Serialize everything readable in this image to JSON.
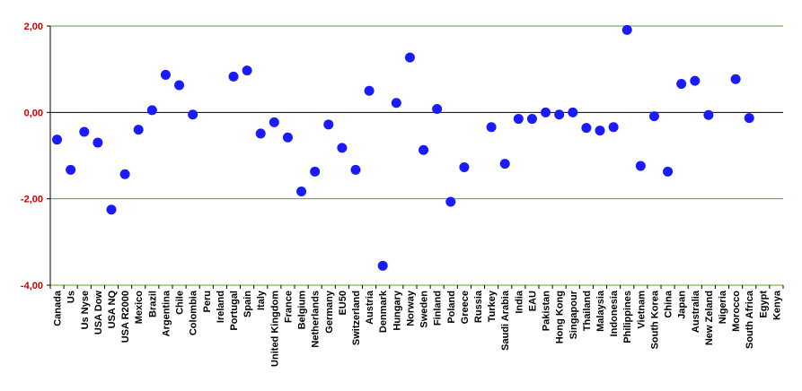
{
  "chart_data": {
    "type": "scatter",
    "title": "",
    "xlabel": "",
    "ylabel": "",
    "ylim": [
      -4,
      2
    ],
    "yticks": [
      2,
      0,
      -2,
      -4
    ],
    "ytick_labels": [
      "2,00",
      "0,00",
      "-2,00",
      "-4,00"
    ],
    "grid": true,
    "legend": "none",
    "colors": {
      "marker": "#1a1aff",
      "gridline": "#5aa02c",
      "zero_line": "#000000",
      "ytick_text": "#cc0000",
      "axis": "#000000"
    },
    "categories": [
      "Canada",
      "Us",
      "Us Nyse",
      "USA Dow",
      "USA NQ",
      "USA R2000",
      "Mexico",
      "Brazil",
      "Argentina",
      "Chile",
      "Colombia",
      "Peru",
      "Ireland",
      "Portugal",
      "Spain",
      "Italy",
      "United Kingdom",
      "France",
      "Belgium",
      "Netherlands",
      "Germany",
      "EU50",
      "Switzerland",
      "Austria",
      "Denmark",
      "Hungary",
      "Norway",
      "Sweden",
      "Finland",
      "Poland",
      "Greece",
      "Russia",
      "Turkey",
      "Saudi Arabia",
      "India",
      "EAU",
      "Pakistan",
      "Hong Kong",
      "Singapour",
      "Thailand",
      "Malaysia",
      "Indonesia",
      "Philippines",
      "Vietnam",
      "South Korea",
      "China",
      "Japan",
      "Australia",
      "New Zeland",
      "Nigeria",
      "Morocco",
      "South Africa",
      "Egypt",
      "Kenya"
    ],
    "values": [
      -0.63,
      -1.33,
      -0.45,
      -0.7,
      -2.25,
      -1.43,
      -0.4,
      0.05,
      0.87,
      0.63,
      -0.05,
      null,
      null,
      0.83,
      0.97,
      -0.49,
      -0.23,
      -0.58,
      -1.83,
      -1.37,
      -0.28,
      -0.82,
      -1.33,
      0.5,
      -3.55,
      0.22,
      1.27,
      -0.87,
      0.08,
      -2.07,
      -1.27,
      null,
      -0.34,
      -1.19,
      -0.15,
      -0.15,
      0.0,
      -0.05,
      0.0,
      -0.36,
      -0.42,
      -0.34,
      1.91,
      -1.24,
      -0.09,
      -1.37,
      0.66,
      0.73,
      -0.06,
      null,
      0.77,
      -0.13,
      null,
      null
    ]
  }
}
